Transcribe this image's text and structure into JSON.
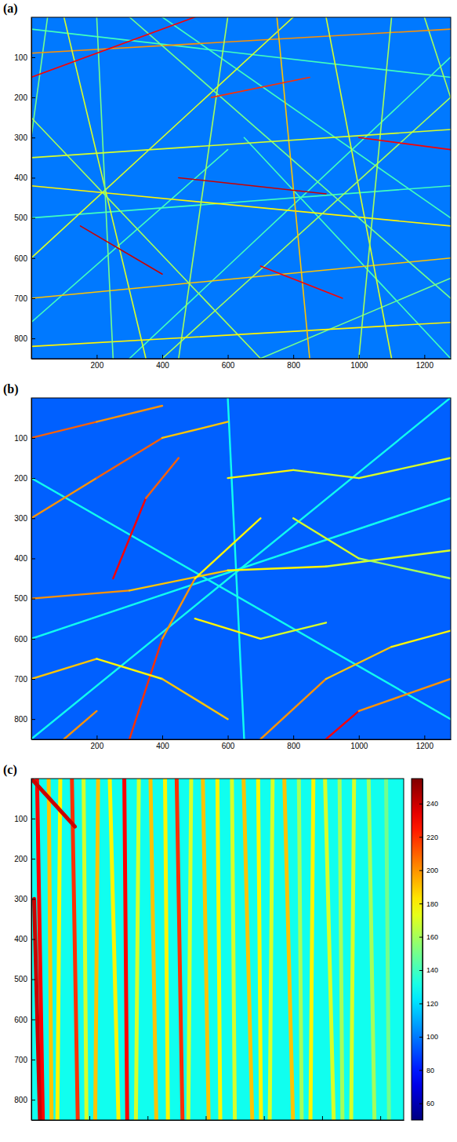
{
  "chart_data": [
    {
      "type": "heatmap",
      "title": "(a)",
      "xlim": [
        0.5,
        1280.5
      ],
      "ylim": [
        0.5,
        850.5
      ],
      "xticks": [
        200,
        400,
        600,
        800,
        1000,
        1200
      ],
      "yticks": [
        100,
        200,
        300,
        400,
        500,
        600,
        700,
        800
      ],
      "background": 100,
      "fibers": [
        [
          0,
          500,
          1280,
          420,
          140
        ],
        [
          400,
          0,
          1280,
          500,
          140
        ],
        [
          0,
          760,
          600,
          330,
          140
        ],
        [
          1280,
          650,
          700,
          850,
          150
        ],
        [
          300,
          850,
          1280,
          100,
          140
        ],
        [
          0,
          30,
          1280,
          150,
          140
        ],
        [
          650,
          300,
          1280,
          850,
          140
        ],
        [
          50,
          0,
          0,
          300,
          150
        ],
        [
          1200,
          0,
          1280,
          200,
          160
        ],
        [
          0,
          90,
          1280,
          30,
          200
        ],
        [
          100,
          0,
          350,
          850,
          170
        ],
        [
          0,
          420,
          1280,
          520,
          180
        ],
        [
          600,
          0,
          450,
          850,
          160
        ],
        [
          0,
          700,
          1280,
          600,
          190
        ],
        [
          900,
          0,
          1100,
          850,
          170
        ],
        [
          0,
          250,
          700,
          850,
          160
        ],
        [
          300,
          0,
          1280,
          700,
          150
        ],
        [
          0,
          600,
          800,
          0,
          170
        ],
        [
          1280,
          200,
          400,
          850,
          160
        ],
        [
          0,
          820,
          1280,
          760,
          180
        ],
        [
          200,
          0,
          250,
          850,
          150
        ],
        [
          750,
          0,
          850,
          850,
          190
        ],
        [
          1100,
          0,
          1000,
          850,
          160
        ],
        [
          0,
          350,
          1280,
          280,
          170
        ],
        [
          0,
          150,
          500,
          0,
          230
        ],
        [
          450,
          400,
          900,
          440,
          240
        ],
        [
          1000,
          300,
          1280,
          330,
          230
        ],
        [
          150,
          520,
          400,
          640,
          240
        ],
        [
          700,
          620,
          950,
          700,
          230
        ],
        [
          550,
          200,
          850,
          150,
          220
        ]
      ]
    },
    {
      "type": "heatmap",
      "title": "(b)",
      "xlim": [
        0.5,
        1280.5
      ],
      "ylim": [
        0.5,
        850.5
      ],
      "xticks": [
        200,
        400,
        600,
        800,
        1000,
        1200
      ],
      "yticks": [
        100,
        200,
        300,
        400,
        500,
        600,
        700,
        800
      ],
      "background": 95,
      "fibers": [
        [
          0,
          200,
          1280,
          800,
          130
        ],
        [
          1280,
          0,
          0,
          850,
          130
        ],
        [
          600,
          0,
          650,
          850,
          130
        ],
        [
          0,
          600,
          1280,
          250,
          130
        ],
        [
          0,
          300,
          200,
          200,
          200
        ],
        [
          200,
          200,
          400,
          100,
          210
        ],
        [
          400,
          100,
          600,
          60,
          190
        ],
        [
          0,
          500,
          300,
          480,
          200
        ],
        [
          300,
          480,
          600,
          430,
          190
        ],
        [
          600,
          430,
          900,
          420,
          180
        ],
        [
          900,
          420,
          1280,
          380,
          170
        ],
        [
          300,
          850,
          400,
          600,
          220
        ],
        [
          400,
          600,
          500,
          450,
          200
        ],
        [
          500,
          450,
          700,
          300,
          180
        ],
        [
          250,
          450,
          350,
          250,
          230
        ],
        [
          350,
          250,
          450,
          150,
          210
        ],
        [
          600,
          200,
          800,
          180,
          180
        ],
        [
          800,
          180,
          1000,
          200,
          170
        ],
        [
          1000,
          200,
          1280,
          150,
          170
        ],
        [
          700,
          850,
          900,
          700,
          200
        ],
        [
          900,
          700,
          1100,
          620,
          190
        ],
        [
          1100,
          620,
          1280,
          580,
          180
        ],
        [
          0,
          700,
          200,
          650,
          190
        ],
        [
          200,
          650,
          400,
          700,
          180
        ],
        [
          400,
          700,
          600,
          800,
          190
        ],
        [
          800,
          300,
          1000,
          400,
          170
        ],
        [
          1000,
          400,
          1280,
          450,
          160
        ],
        [
          900,
          850,
          1000,
          780,
          230
        ],
        [
          1000,
          780,
          1280,
          700,
          200
        ],
        [
          0,
          100,
          200,
          60,
          210
        ],
        [
          200,
          60,
          400,
          20,
          200
        ],
        [
          500,
          550,
          700,
          600,
          180
        ],
        [
          700,
          600,
          900,
          560,
          170
        ],
        [
          100,
          850,
          200,
          780,
          200
        ]
      ]
    },
    {
      "type": "heatmap",
      "title": "(c)",
      "tick_labels": "y",
      "xlim": [
        0.5,
        1280.5
      ],
      "ylim": [
        0.5,
        850.5
      ],
      "xticks": [
        200,
        400,
        600,
        800,
        1000,
        1200
      ],
      "yticks": [
        100,
        200,
        300,
        400,
        500,
        600,
        700,
        800
      ],
      "background": 130,
      "fibers": [
        [
          20,
          0,
          40,
          850,
          230
        ],
        [
          60,
          0,
          70,
          850,
          190
        ],
        [
          100,
          0,
          90,
          850,
          180
        ],
        [
          140,
          0,
          160,
          850,
          220
        ],
        [
          180,
          0,
          190,
          850,
          170
        ],
        [
          230,
          0,
          220,
          850,
          190
        ],
        [
          270,
          0,
          300,
          850,
          180
        ],
        [
          320,
          0,
          330,
          850,
          230
        ],
        [
          370,
          0,
          360,
          850,
          170
        ],
        [
          410,
          0,
          430,
          850,
          190
        ],
        [
          460,
          0,
          470,
          850,
          180
        ],
        [
          500,
          0,
          520,
          850,
          220
        ],
        [
          550,
          0,
          540,
          850,
          170
        ],
        [
          590,
          0,
          610,
          850,
          190
        ],
        [
          640,
          0,
          650,
          850,
          180
        ],
        [
          690,
          0,
          700,
          850,
          170
        ],
        [
          730,
          0,
          760,
          850,
          190
        ],
        [
          780,
          0,
          790,
          850,
          180
        ],
        [
          830,
          0,
          820,
          850,
          170
        ],
        [
          870,
          0,
          900,
          850,
          190
        ],
        [
          920,
          0,
          930,
          850,
          160
        ],
        [
          970,
          0,
          960,
          850,
          180
        ],
        [
          1010,
          0,
          1040,
          850,
          170
        ],
        [
          1060,
          0,
          1070,
          850,
          160
        ],
        [
          1110,
          0,
          1100,
          850,
          170
        ],
        [
          1160,
          0,
          1180,
          850,
          160
        ],
        [
          1220,
          0,
          1230,
          850,
          150
        ],
        [
          0,
          0,
          150,
          120,
          240
        ],
        [
          10,
          300,
          30,
          850,
          240
        ]
      ],
      "colorbar": {
        "range": [
          50,
          255
        ],
        "ticks": [
          60,
          80,
          100,
          120,
          140,
          160,
          180,
          200,
          220,
          240
        ]
      }
    }
  ]
}
